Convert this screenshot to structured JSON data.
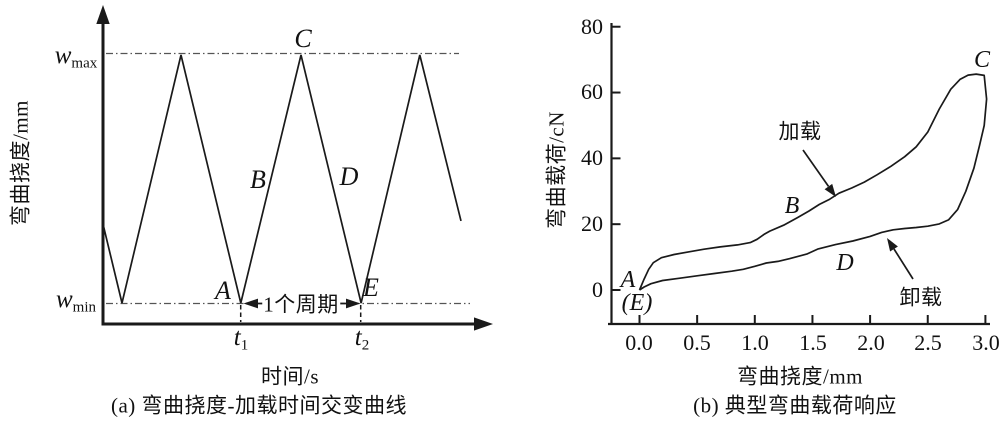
{
  "figure": {
    "panel_a": {
      "caption": "(a) 弯曲挠度-加载时间交变曲线",
      "y_axis_label": "弯曲挠度/mm",
      "x_axis_label": "时间/s",
      "w_max": {
        "base": "w",
        "sub": "max"
      },
      "w_min": {
        "base": "w",
        "sub": "min"
      },
      "t1": {
        "base": "t",
        "sub": "1"
      },
      "t2": {
        "base": "t",
        "sub": "2"
      },
      "period_label": "1个周期",
      "points": {
        "A": "A",
        "B": "B",
        "C": "C",
        "D": "D",
        "E": "E"
      }
    },
    "panel_b": {
      "caption": "(b) 典型弯曲载荷响应",
      "y_axis_label": "弯曲载荷/cN",
      "x_axis_label": "弯曲挠度/mm",
      "y_ticks": [
        "80",
        "60",
        "40",
        "20",
        "0"
      ],
      "x_ticks": [
        "0.0",
        "0.5",
        "1.0",
        "1.5",
        "2.0",
        "2.5",
        "3.0"
      ],
      "loading_label": "加载",
      "unloading_label": "卸载",
      "points": {
        "A": "A",
        "E_paren": "(E)",
        "B": "B",
        "C": "C",
        "D": "D"
      }
    },
    "line_color": "#1a1a1a"
  },
  "chart_data": [
    {
      "panel": "a",
      "type": "line",
      "title": "(a) 弯曲挠度-加载时间交变曲线",
      "xlabel": "时间/s",
      "ylabel": "弯曲挠度/mm",
      "y_levels": [
        "w_min",
        "w_max"
      ],
      "x_marks": [
        "t1",
        "t2"
      ],
      "description": "Triangular alternating deflection wave between w_min and w_max; one period spans t1 (point A) to t2 (point E); peak labeled C, rising branch B, falling branch D.",
      "waveform_norm_points": [
        [
          0,
          0.318
        ],
        [
          0.053,
          0
        ],
        [
          0.218,
          1
        ],
        [
          0.385,
          0
        ],
        [
          0.553,
          1
        ],
        [
          0.721,
          0
        ],
        [
          0.885,
          1
        ],
        [
          1,
          0.331
        ]
      ],
      "key_points": {
        "A": "(t1, w_min)",
        "C": "(mid-period, w_max)",
        "E": "(t2, w_min)"
      },
      "grid": false
    },
    {
      "panel": "b",
      "type": "line",
      "title": "(b) 典型弯曲载荷响应",
      "xlabel": "弯曲挠度/mm",
      "ylabel": "弯曲载荷/cN",
      "xlim": [
        0,
        3.0
      ],
      "ylim": [
        0,
        80
      ],
      "x_tick_values": [
        0,
        0.5,
        1.0,
        1.5,
        2.0,
        2.5,
        3.0
      ],
      "y_tick_values": [
        0,
        20,
        40,
        60,
        80
      ],
      "grid": false,
      "legend": "none",
      "series": [
        {
          "name": "加载 (loading A→B→C)",
          "points": [
            [
              0,
              0
            ],
            [
              0.04,
              3.3
            ],
            [
              0.08,
              6.3
            ],
            [
              0.12,
              8.3
            ],
            [
              0.19,
              9.8
            ],
            [
              0.3,
              10.8
            ],
            [
              0.43,
              11.6
            ],
            [
              0.56,
              12.4
            ],
            [
              0.7,
              13.1
            ],
            [
              0.85,
              13.7
            ],
            [
              0.96,
              14.4
            ],
            [
              1.02,
              15.4
            ],
            [
              1.08,
              16.9
            ],
            [
              1.13,
              17.9
            ],
            [
              1.25,
              19.7
            ],
            [
              1.37,
              22
            ],
            [
              1.47,
              24
            ],
            [
              1.56,
              26
            ],
            [
              1.65,
              27.6
            ],
            [
              1.73,
              29.4
            ],
            [
              1.84,
              31
            ],
            [
              1.95,
              32.8
            ],
            [
              2.06,
              35
            ],
            [
              2.18,
              37.6
            ],
            [
              2.3,
              40.5
            ],
            [
              2.4,
              43.5
            ],
            [
              2.5,
              48
            ],
            [
              2.6,
              55
            ],
            [
              2.7,
              61
            ],
            [
              2.78,
              64
            ],
            [
              2.85,
              65.3
            ],
            [
              2.92,
              65.6
            ],
            [
              2.99,
              65.2
            ]
          ]
        },
        {
          "name": "卸载 (unloading C→D→E)",
          "points": [
            [
              3.01,
              58
            ],
            [
              2.99,
              50
            ],
            [
              2.95,
              44
            ],
            [
              2.9,
              37
            ],
            [
              2.83,
              30
            ],
            [
              2.76,
              24.5
            ],
            [
              2.68,
              21.3
            ],
            [
              2.6,
              20.1
            ],
            [
              2.5,
              19.4
            ],
            [
              2.4,
              19
            ],
            [
              2.3,
              18.7
            ],
            [
              2.2,
              18.3
            ],
            [
              2.1,
              17.5
            ],
            [
              2.0,
              16.3
            ],
            [
              1.85,
              14.9
            ],
            [
              1.7,
              13.8
            ],
            [
              1.55,
              12.5
            ],
            [
              1.45,
              10.9
            ],
            [
              1.3,
              9.5
            ],
            [
              1.2,
              8.7
            ],
            [
              1.1,
              8.2
            ],
            [
              1.0,
              7.2
            ],
            [
              0.9,
              6.3
            ],
            [
              0.8,
              5.7
            ],
            [
              0.65,
              5.0
            ],
            [
              0.5,
              4.3
            ],
            [
              0.35,
              3.6
            ],
            [
              0.2,
              2.9
            ],
            [
              0.1,
              1.9
            ],
            [
              0.04,
              0.9
            ],
            [
              0,
              0
            ]
          ]
        }
      ],
      "annotations": [
        {
          "text": "加载",
          "arrow_from_data": [
            1.42,
            43
          ],
          "arrow_to_data": [
            1.7,
            28.5
          ]
        },
        {
          "text": "卸载",
          "arrow_from_data": [
            2.37,
            3.5
          ],
          "arrow_to_data": [
            2.14,
            16.2
          ]
        },
        {
          "text": "A (E)",
          "at_data": [
            0,
            0
          ]
        },
        {
          "text": "B",
          "at_data": [
            1.32,
            25.5
          ]
        },
        {
          "text": "C",
          "at_data": [
            2.97,
            70
          ]
        },
        {
          "text": "D",
          "at_data": [
            1.78,
            8.2
          ]
        }
      ]
    }
  ]
}
